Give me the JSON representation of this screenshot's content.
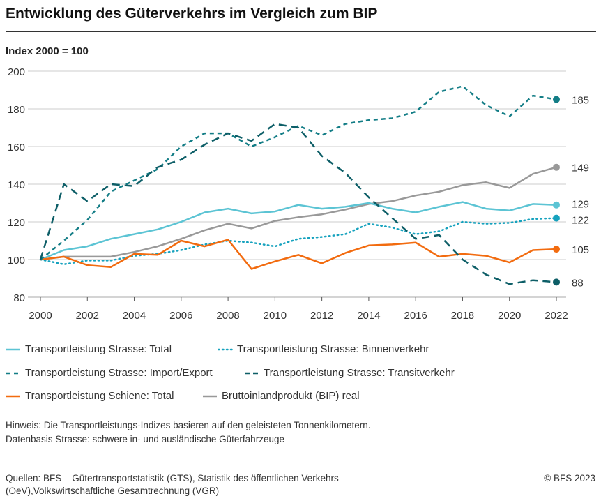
{
  "title": "Entwicklung des Güterverkehrs im Vergleich zum BIP",
  "notes": [
    "Hinweis: Die Transportleistungs-Indizes basieren auf den geleisteten Tonnenkilometern.",
    "Datenbasis Strasse: schwere in- und ausländische Güterfahrzeuge"
  ],
  "sources": [
    "Quellen: BFS – Gütertransportstatistik (GTS), Statistik des öffentlichen Verkehrs",
    "(OeV),Volkswirtschaftliche Gesamtrechnung (VGR)"
  ],
  "copyright": "© BFS 2023",
  "chart_data": {
    "type": "line",
    "title": "Entwicklung des Güterverkehrs im Vergleich zum BIP",
    "ylabel": "Index 2000 = 100",
    "xlabel": "",
    "ylim": [
      80,
      200
    ],
    "yticks": [
      80,
      100,
      120,
      140,
      160,
      180,
      200
    ],
    "xticks": [
      2000,
      2002,
      2004,
      2006,
      2008,
      2010,
      2012,
      2014,
      2016,
      2018,
      2020,
      2022
    ],
    "grid": "horizontal",
    "legend": "bottom",
    "x": [
      2000,
      2001,
      2002,
      2003,
      2004,
      2005,
      2006,
      2007,
      2008,
      2009,
      2010,
      2011,
      2012,
      2013,
      2014,
      2015,
      2016,
      2017,
      2018,
      2019,
      2020,
      2021,
      2022
    ],
    "series": [
      {
        "name": "Transportleistung Strasse: Total",
        "color": "#5cc4d4",
        "style": "solid",
        "end_label": "129",
        "values": [
          100,
          105,
          107,
          111,
          113.5,
          116,
          120,
          125,
          127,
          124.5,
          125.5,
          129,
          127,
          128,
          130,
          127,
          125,
          128,
          130.5,
          127,
          126,
          129.5,
          129
        ]
      },
      {
        "name": "Transportleistung Strasse: Binnenverkehr",
        "color": "#16a2be",
        "style": "dotted",
        "end_label": "122",
        "values": [
          100,
          97.5,
          99.5,
          99.5,
          102,
          103,
          105,
          108,
          110,
          109,
          107,
          111,
          112,
          113.5,
          119,
          117,
          113.5,
          115,
          120,
          119,
          119.5,
          121.5,
          122
        ]
      },
      {
        "name": "Transportleistung Strasse: Import/Export",
        "color": "#137d86",
        "style": "dashed",
        "end_label": "185",
        "values": [
          100,
          110,
          121,
          136,
          142,
          148,
          160,
          167,
          167,
          160,
          165,
          171,
          166,
          172,
          174,
          175,
          178.5,
          189,
          192,
          182,
          176,
          187,
          185
        ]
      },
      {
        "name": "Transportleistung Strasse: Transitverkehr",
        "color": "#0d5e67",
        "style": "longdash",
        "end_label": "88",
        "values": [
          100,
          140,
          131,
          140,
          139,
          149,
          153,
          161,
          167,
          163,
          172,
          170,
          155,
          146,
          133,
          122,
          111,
          113,
          100,
          92,
          87,
          89,
          88
        ]
      },
      {
        "name": "Transportleistung Schiene: Total",
        "color": "#f26b0f",
        "style": "solid",
        "end_label": "105",
        "values": [
          100,
          101.5,
          97,
          96,
          103,
          102.5,
          110,
          107,
          110.5,
          95,
          99,
          102.5,
          98,
          103.5,
          107.5,
          108,
          109,
          101.5,
          103,
          102,
          98.5,
          105,
          105.5
        ]
      },
      {
        "name": "Bruttoinlandprodukt (BIP) real",
        "color": "#999999",
        "style": "solid",
        "end_label": "149",
        "values": [
          100,
          101.5,
          101.5,
          101.5,
          104,
          107,
          111,
          115.5,
          119,
          116.5,
          120.5,
          122.5,
          124,
          126.5,
          129.5,
          131,
          134,
          136,
          139.5,
          141,
          138,
          145.5,
          149
        ]
      }
    ]
  }
}
